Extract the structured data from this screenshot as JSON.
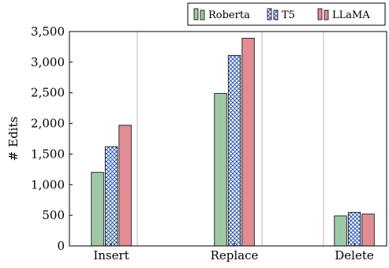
{
  "chart_data": {
    "type": "bar",
    "title": "",
    "xlabel": "",
    "ylabel": "# Edits",
    "categories": [
      "Insert",
      "Replace",
      "Delete"
    ],
    "series": [
      {
        "name": "Roberta",
        "values": [
          1200,
          2490,
          490
        ],
        "color": "#9fc8a6",
        "pattern": "solid"
      },
      {
        "name": "T5",
        "values": [
          1620,
          3110,
          550
        ],
        "color": "#3a63b5",
        "pattern": "crosshatch"
      },
      {
        "name": "LLaMA",
        "values": [
          1970,
          3390,
          520
        ],
        "color": "#e08e93",
        "pattern": "solid"
      }
    ],
    "ylim": [
      0,
      3500
    ],
    "yticks": [
      0,
      500,
      1000,
      1500,
      2000,
      2500,
      3000,
      3500
    ],
    "ytick_labels": [
      "0",
      "500",
      "1,000",
      "1,500",
      "2,000",
      "2,500",
      "3,000",
      "3,500"
    ],
    "grid": "vertical lines between categories",
    "legend": {
      "placement": "top-right",
      "orientation": "horizontal"
    }
  }
}
